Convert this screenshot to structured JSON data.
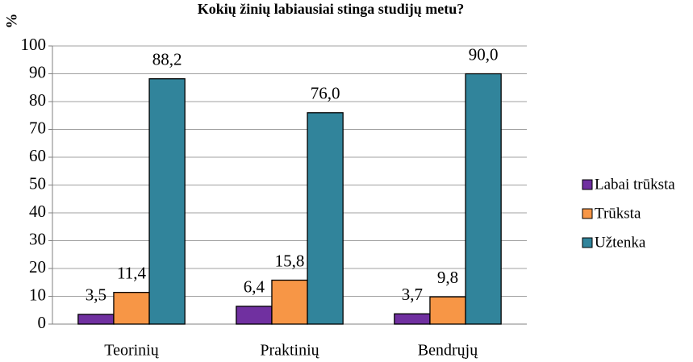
{
  "chart_data": {
    "type": "bar",
    "title": "Kokių žinių labiausiai stinga studijų metu?",
    "ylabel": "%",
    "categories": [
      "Teorinių",
      "Praktinių",
      "Bendrųjų"
    ],
    "series": [
      {
        "name": "Labai trūksta",
        "color": "#7030a0",
        "values": [
          3.5,
          6.4,
          3.7
        ],
        "value_labels": [
          "3,5",
          "6,4",
          "3,7"
        ]
      },
      {
        "name": "Trūksta",
        "color": "#f79646",
        "values": [
          11.4,
          15.8,
          9.8
        ],
        "value_labels": [
          "11,4",
          "15,8",
          "9,8"
        ]
      },
      {
        "name": "Užtenka",
        "color": "#31849b",
        "values": [
          88.2,
          76.0,
          90.0
        ],
        "value_labels": [
          "88,2",
          "76,0",
          "90,0"
        ]
      }
    ],
    "ylim": [
      0,
      100
    ],
    "yticks": [
      0,
      10,
      20,
      30,
      40,
      50,
      60,
      70,
      80,
      90,
      100
    ],
    "grid": true,
    "legend": "right"
  }
}
